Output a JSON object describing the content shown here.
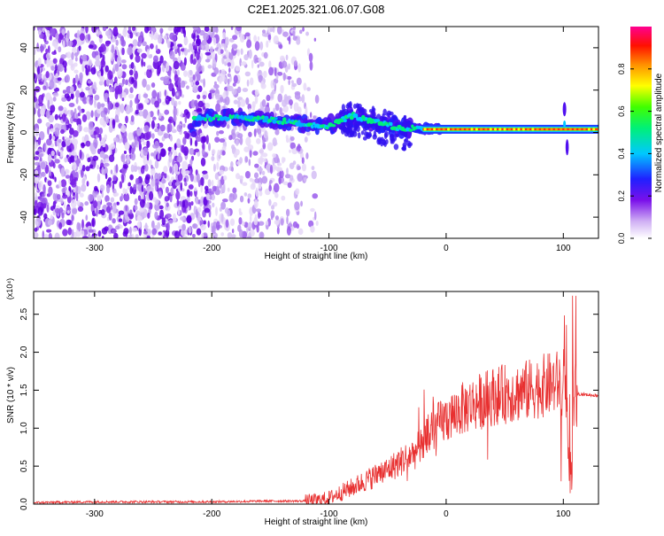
{
  "chart_data": [
    {
      "type": "heatmap",
      "title": "C2E1.2025.321.06.07.G08",
      "xlabel": "Height of straight line (km)",
      "ylabel": "Frequency (Hz)",
      "xlim": [
        -352,
        130
      ],
      "ylim": [
        -50,
        50
      ],
      "xticks": [
        -300,
        -200,
        -100,
        0,
        100
      ],
      "yticks": [
        -40,
        -20,
        0,
        20,
        40
      ],
      "colorbar": {
        "label": "Normalized spectral amplitude",
        "range": [
          0,
          1
        ],
        "ticks": [
          "0.0",
          "0.2",
          "0.4",
          "0.6",
          "0.8"
        ],
        "ticks_values": [
          0.0,
          0.2,
          0.4,
          0.6,
          0.8
        ],
        "colors": [
          "#ffffff",
          "#b890f0",
          "#6a00e8",
          "#0000ff",
          "#00c8ff",
          "#00ff60",
          "#ffff00",
          "#ff8000",
          "#ff0000",
          "#ff0080"
        ]
      },
      "signal_track": [
        {
          "x": -215,
          "freq": 7
        },
        {
          "x": -180,
          "freq": 7
        },
        {
          "x": -150,
          "freq": 6
        },
        {
          "x": -120,
          "freq": 4
        },
        {
          "x": -100,
          "freq": 3
        },
        {
          "x": -80,
          "freq": 8
        },
        {
          "x": -60,
          "freq": 5
        },
        {
          "x": -40,
          "freq": 2
        },
        {
          "x": -20,
          "freq": 2
        },
        {
          "x": 0,
          "freq": 1.5
        },
        {
          "x": 50,
          "freq": 1.5
        },
        {
          "x": 100,
          "freq": 1.5
        },
        {
          "x": 130,
          "freq": 1.5
        }
      ],
      "noise_region": [
        -352,
        -120
      ]
    },
    {
      "type": "line",
      "xlabel": "Height of straight line (km)",
      "ylabel": "SNR (10 * v/v)",
      "y_multiplier": "(x10⁴)",
      "xlim": [
        -352,
        130
      ],
      "ylim": [
        0,
        2.8
      ],
      "xticks": [
        -300,
        -200,
        -100,
        0,
        100
      ],
      "yticks": [
        "0.0",
        "0.5",
        "1.0",
        "1.5",
        "2.0",
        "2.5"
      ],
      "yticks_values": [
        0.0,
        0.5,
        1.0,
        1.5,
        2.0,
        2.5
      ],
      "color": "#e83030",
      "series": [
        {
          "x": [
            -352,
            -300,
            -250,
            -200,
            -150,
            -125,
            -110,
            -100,
            -90,
            -80,
            -70,
            -60,
            -50,
            -40,
            -30,
            -25,
            -20,
            -15,
            -10,
            0,
            10,
            20,
            30,
            40,
            50,
            60,
            70,
            80,
            90,
            95,
            100,
            103,
            105,
            107,
            108,
            110,
            115,
            120,
            130
          ],
          "y": [
            0.02,
            0.03,
            0.03,
            0.03,
            0.04,
            0.04,
            0.05,
            0.08,
            0.15,
            0.22,
            0.3,
            0.38,
            0.45,
            0.55,
            0.65,
            0.7,
            0.78,
            0.9,
            1.0,
            1.12,
            1.22,
            1.3,
            1.36,
            1.42,
            1.45,
            1.47,
            1.5,
            1.55,
            1.58,
            1.6,
            1.55,
            1.4,
            0.2,
            0.15,
            1.2,
            1.45,
            1.45,
            1.44,
            1.43
          ]
        }
      ]
    }
  ]
}
